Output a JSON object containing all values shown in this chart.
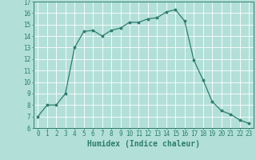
{
  "x": [
    0,
    1,
    2,
    3,
    4,
    5,
    6,
    7,
    8,
    9,
    10,
    11,
    12,
    13,
    14,
    15,
    16,
    17,
    18,
    19,
    20,
    21,
    22,
    23
  ],
  "y": [
    7,
    8,
    8,
    9,
    13,
    14.4,
    14.5,
    14,
    14.5,
    14.7,
    15.2,
    15.2,
    15.5,
    15.6,
    16.1,
    16.3,
    15.3,
    11.9,
    10.2,
    8.3,
    7.5,
    7.2,
    6.7,
    6.4
  ],
  "line_color": "#2e7d6e",
  "marker_color": "#2e7d6e",
  "bg_color": "#b2e0d8",
  "grid_color": "#ffffff",
  "xlabel": "Humidex (Indice chaleur)",
  "xlim": [
    -0.5,
    23.5
  ],
  "ylim": [
    6,
    17
  ],
  "yticks": [
    6,
    7,
    8,
    9,
    10,
    11,
    12,
    13,
    14,
    15,
    16,
    17
  ],
  "xticks": [
    0,
    1,
    2,
    3,
    4,
    5,
    6,
    7,
    8,
    9,
    10,
    11,
    12,
    13,
    14,
    15,
    16,
    17,
    18,
    19,
    20,
    21,
    22,
    23
  ],
  "font_color": "#2e7d6e",
  "label_fontsize": 7,
  "tick_fontsize": 5.5
}
